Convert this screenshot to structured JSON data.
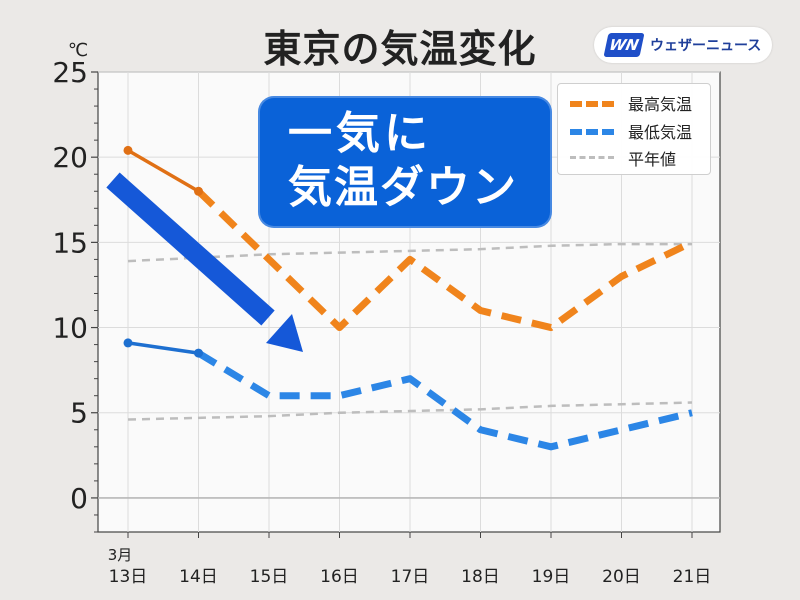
{
  "title": "東京の気温変化",
  "logo": {
    "mark": "WN",
    "text": "ウェザーニュース"
  },
  "callout": {
    "line1": "一気に",
    "line2": "気温ダウン"
  },
  "unit_label": "℃",
  "legend": [
    {
      "label": "最高気温",
      "color": "#f0841c"
    },
    {
      "label": "最低気温",
      "color": "#2c86e6"
    },
    {
      "label": "平年値",
      "color": "#bdbdbd"
    }
  ],
  "colors": {
    "observed_max": "#e07015",
    "observed_min": "#1d6fd0",
    "arrow": "#1558d8"
  },
  "chart_data": {
    "type": "line",
    "x": [
      "3月\n13日",
      "14日",
      "15日",
      "16日",
      "17日",
      "18日",
      "19日",
      "20日",
      "21日"
    ],
    "ylim": [
      -2,
      25
    ],
    "yticks": [
      0,
      5,
      10,
      15,
      20,
      25
    ],
    "grid": true,
    "legend_position": "top-right",
    "series": [
      {
        "name": "最高気温",
        "values": [
          20.4,
          18,
          14,
          10,
          14,
          11,
          10,
          13,
          15
        ],
        "observed_until_index": 1
      },
      {
        "name": "最低気温",
        "values": [
          9.1,
          8.5,
          6,
          6,
          7,
          4,
          3,
          4,
          5
        ],
        "observed_until_index": 1
      },
      {
        "name": "平年値",
        "values": [
          13.9,
          14.1,
          14.3,
          14.4,
          14.5,
          14.6,
          14.8,
          14.9,
          14.9
        ]
      },
      {
        "name": "平年値",
        "values": [
          4.6,
          4.7,
          4.8,
          5.0,
          5.1,
          5.2,
          5.4,
          5.5,
          5.6
        ]
      }
    ],
    "annotations": [
      "一気に 気温ダウン"
    ]
  }
}
